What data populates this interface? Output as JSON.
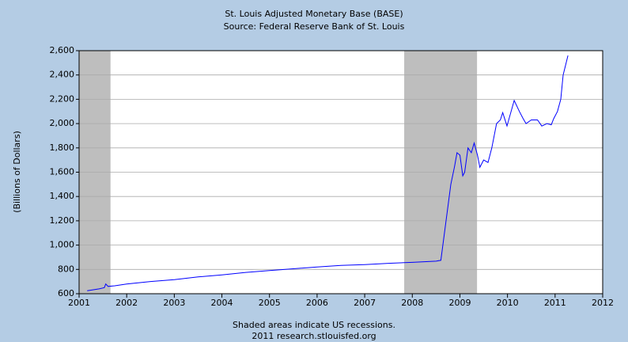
{
  "chart_data": {
    "type": "line",
    "title": "St. Louis Adjusted Monetary Base (BASE)",
    "subtitle": "Source: Federal Reserve Bank of St. Louis",
    "y_label": "(Billions of Dollars)",
    "note": "Shaded areas indicate US recessions.",
    "footer": "2011 research.stlouisfed.org",
    "recessions": [
      [
        2001.0,
        2001.66
      ],
      [
        2007.83,
        2009.36
      ]
    ],
    "recession_color": "#bebebe",
    "grid": true,
    "xlim": [
      2001,
      2012
    ],
    "xticks": [
      2001,
      2002,
      2003,
      2004,
      2005,
      2006,
      2007,
      2008,
      2009,
      2010,
      2011,
      2012
    ],
    "ylim": [
      600,
      2600
    ],
    "yticks": [
      600,
      800,
      {
        "value": 1000,
        "label": "1,000"
      },
      {
        "value": 1200,
        "label": "1,200"
      },
      {
        "value": 1400,
        "label": "1,400"
      },
      {
        "value": 1600,
        "label": "1,600"
      },
      {
        "value": 1800,
        "label": "1,800"
      },
      {
        "value": 2000,
        "label": "2,000"
      },
      {
        "value": 2200,
        "label": "2,200"
      },
      {
        "value": 2400,
        "label": "2,400"
      },
      {
        "value": 2600,
        "label": "2,600"
      }
    ],
    "series": [
      {
        "name": "BASE",
        "color": "#0000ff",
        "x": [
          2001.17,
          2001.42,
          2001.53,
          2001.56,
          2001.61,
          2001.75,
          2002.0,
          2002.5,
          2003.0,
          2003.5,
          2004.0,
          2004.5,
          2005.0,
          2005.5,
          2006.0,
          2006.5,
          2007.0,
          2007.5,
          2008.0,
          2008.5,
          2008.6,
          2008.81,
          2008.89,
          2008.94,
          2009.0,
          2009.06,
          2009.1,
          2009.17,
          2009.24,
          2009.3,
          2009.37,
          2009.42,
          2009.5,
          2009.59,
          2009.67,
          2009.77,
          2009.85,
          2009.9,
          2009.99,
          2010.14,
          2010.25,
          2010.33,
          2010.39,
          2010.5,
          2010.63,
          2010.72,
          2010.83,
          2010.92,
          2010.97,
          2011.05,
          2011.12,
          2011.17,
          2011.27
        ],
        "values": [
          625,
          640,
          650,
          680,
          660,
          665,
          680,
          700,
          715,
          738,
          755,
          775,
          790,
          805,
          820,
          833,
          840,
          850,
          858,
          868,
          875,
          1500,
          1650,
          1760,
          1740,
          1570,
          1600,
          1800,
          1760,
          1840,
          1740,
          1640,
          1700,
          1680,
          1800,
          2000,
          2030,
          2090,
          1980,
          2190,
          2100,
          2040,
          2000,
          2030,
          2030,
          1980,
          2000,
          1990,
          2040,
          2100,
          2200,
          2400,
          2560
        ]
      }
    ]
  }
}
